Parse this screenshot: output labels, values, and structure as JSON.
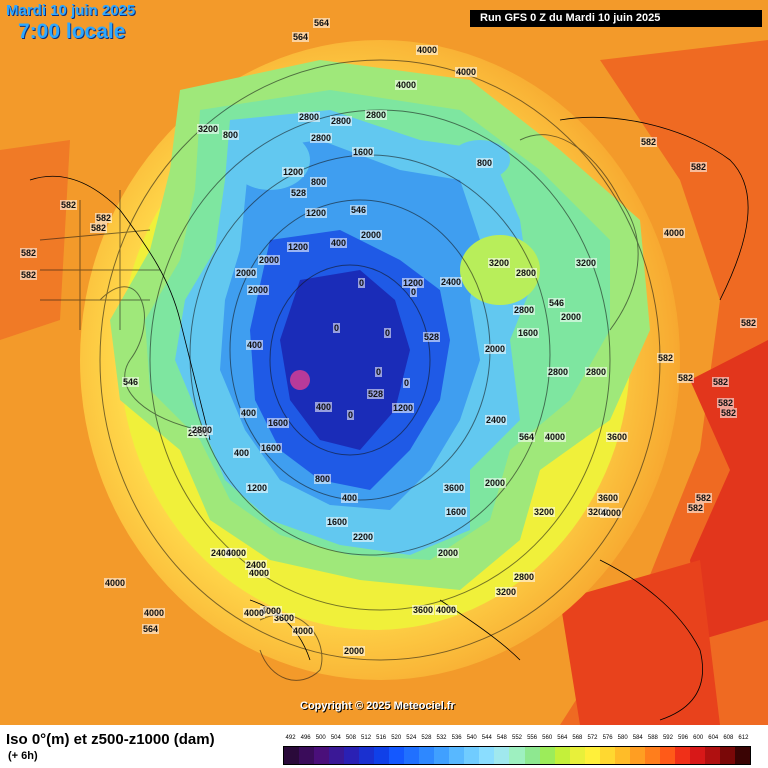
{
  "header": {
    "date_title": "Mardi 10 juin 2025",
    "time_title": "7:00 locale",
    "run_info": "Run GFS 0 Z du Mardi 10 juin 2025"
  },
  "copyright": "Copyright © 2025 Meteociel.fr",
  "legend": {
    "title": "Iso 0°(m) et z500-z1000 (dam)",
    "subtitle": "(+ 6h)",
    "scale_values": [
      "492",
      "496",
      "500",
      "504",
      "508",
      "512",
      "516",
      "520",
      "524",
      "528",
      "532",
      "536",
      "540",
      "544",
      "548",
      "552",
      "556",
      "560",
      "564",
      "568",
      "572",
      "576",
      "580",
      "584",
      "588",
      "592",
      "596",
      "600",
      "604",
      "608",
      "612"
    ],
    "scale_colors": [
      "#2a0a3a",
      "#3a0c5a",
      "#4a0f7a",
      "#3a1896",
      "#2a20b4",
      "#1a30d0",
      "#1040e8",
      "#1458ff",
      "#2070ff",
      "#2e88ff",
      "#40a0ff",
      "#58b8ff",
      "#70ccff",
      "#8addff",
      "#a0e8ee",
      "#9ef0c0",
      "#8ee890",
      "#9cec5a",
      "#c4f03a",
      "#e8f03a",
      "#fff03a",
      "#ffd830",
      "#ffbc28",
      "#ff9e22",
      "#ff7e1c",
      "#ff5a18",
      "#f03018",
      "#d81818",
      "#b01010",
      "#7a0808",
      "#3a0404"
    ]
  },
  "map_labels": [
    {
      "text": "564"
    },
    {
      "text": "564"
    },
    {
      "text": "4000"
    },
    {
      "text": "4000"
    },
    {
      "text": "4000"
    },
    {
      "text": "3200"
    },
    {
      "text": "800"
    },
    {
      "text": "2800"
    },
    {
      "text": "2800"
    },
    {
      "text": "2800"
    },
    {
      "text": "2800"
    },
    {
      "text": "1200"
    },
    {
      "text": "800"
    },
    {
      "text": "1600"
    },
    {
      "text": "800"
    },
    {
      "text": "528"
    },
    {
      "text": "1200"
    },
    {
      "text": "546"
    },
    {
      "text": "2000"
    },
    {
      "text": "1200"
    },
    {
      "text": "400"
    },
    {
      "text": "1200"
    },
    {
      "text": "2000"
    },
    {
      "text": "2000"
    },
    {
      "text": "2000"
    },
    {
      "text": "400"
    },
    {
      "text": "0"
    },
    {
      "text": "0"
    },
    {
      "text": "0"
    },
    {
      "text": "0"
    },
    {
      "text": "0"
    },
    {
      "text": "0"
    },
    {
      "text": "0"
    },
    {
      "text": "400"
    },
    {
      "text": "400"
    },
    {
      "text": "528"
    },
    {
      "text": "528"
    },
    {
      "text": "1200"
    },
    {
      "text": "2400"
    },
    {
      "text": "1600"
    },
    {
      "text": "2000"
    },
    {
      "text": "2400"
    },
    {
      "text": "3200"
    },
    {
      "text": "2800"
    },
    {
      "text": "2800"
    },
    {
      "text": "546"
    },
    {
      "text": "2000"
    },
    {
      "text": "2800"
    },
    {
      "text": "2800"
    },
    {
      "text": "3200"
    },
    {
      "text": "4000"
    },
    {
      "text": "582"
    },
    {
      "text": "582"
    },
    {
      "text": "582"
    },
    {
      "text": "582"
    },
    {
      "text": "582"
    },
    {
      "text": "582"
    },
    {
      "text": "582"
    },
    {
      "text": "582"
    },
    {
      "text": "582"
    },
    {
      "text": "582"
    },
    {
      "text": "582"
    },
    {
      "text": "582"
    },
    {
      "text": "582"
    },
    {
      "text": "582"
    },
    {
      "text": "582"
    },
    {
      "text": "546"
    },
    {
      "text": "564"
    },
    {
      "text": "564"
    },
    {
      "text": "4000"
    },
    {
      "text": "3600"
    },
    {
      "text": "3600"
    },
    {
      "text": "3200"
    },
    {
      "text": "3200"
    },
    {
      "text": "4000"
    },
    {
      "text": "4000"
    },
    {
      "text": "4000"
    },
    {
      "text": "3600"
    },
    {
      "text": "4000"
    },
    {
      "text": "4000"
    },
    {
      "text": "2000"
    },
    {
      "text": "2000"
    },
    {
      "text": "1600"
    },
    {
      "text": "2200"
    },
    {
      "text": "1600"
    },
    {
      "text": "800"
    },
    {
      "text": "400"
    },
    {
      "text": "400"
    },
    {
      "text": "1600"
    },
    {
      "text": "1200"
    },
    {
      "text": "2000"
    },
    {
      "text": "3600"
    },
    {
      "text": "4000"
    },
    {
      "text": "3200"
    },
    {
      "text": "2800"
    },
    {
      "text": "2400"
    },
    {
      "text": "4000"
    },
    {
      "text": "3600"
    },
    {
      "text": "2000"
    },
    {
      "text": "2800"
    },
    {
      "text": "1600"
    },
    {
      "text": "2400"
    },
    {
      "text": "4000"
    },
    {
      "text": "4000"
    },
    {
      "text": "3200"
    },
    {
      "text": "3200"
    },
    {
      "text": "4000"
    },
    {
      "text": "4000"
    }
  ]
}
